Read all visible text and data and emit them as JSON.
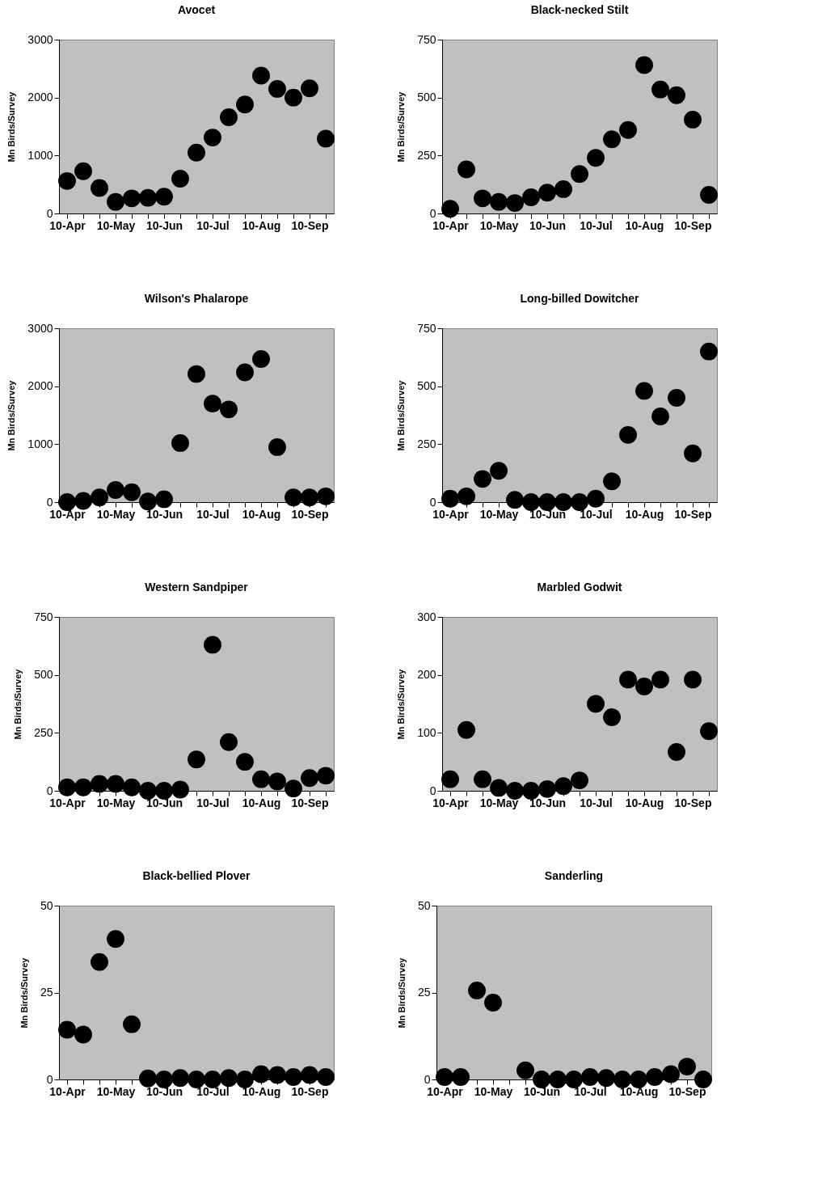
{
  "chart_data": [
    {
      "type": "scatter",
      "title": "Avocet",
      "ylabel": "Mn Birds/Survey",
      "categories": [
        "10-Apr",
        null,
        null,
        "10-May",
        null,
        null,
        "10-Jun",
        null,
        null,
        "10-Jul",
        null,
        null,
        "10-Aug",
        null,
        null,
        "10-Sep",
        null
      ],
      "values": [
        560,
        730,
        440,
        200,
        260,
        270,
        290,
        600,
        1050,
        1310,
        1660,
        1880,
        2380,
        2150,
        2000,
        2160,
        1290
      ],
      "color": "#000000",
      "ylim": [
        0,
        3000
      ],
      "yticks": [
        0,
        1000,
        2000,
        3000
      ],
      "marker": "circle",
      "grid": false
    },
    {
      "type": "scatter",
      "title": "Black-necked Stilt",
      "ylabel": "Mn Birds/Survey",
      "categories": [
        "10-Apr",
        null,
        null,
        "10-May",
        null,
        null,
        "10-Jun",
        null,
        null,
        "10-Jul",
        null,
        null,
        "10-Aug",
        null,
        null,
        "10-Sep",
        null
      ],
      "values": [
        20,
        190,
        65,
        50,
        45,
        70,
        90,
        105,
        170,
        240,
        320,
        360,
        640,
        535,
        510,
        405,
        80
      ],
      "color": "#000000",
      "ylim": [
        0,
        750
      ],
      "yticks": [
        0,
        250,
        500,
        750
      ],
      "marker": "circle",
      "grid": false
    },
    {
      "type": "scatter",
      "title": "Wilson's Phalarope",
      "ylabel": "Mn Birds/Survey",
      "categories": [
        "10-Apr",
        null,
        null,
        "10-May",
        null,
        null,
        "10-Jun",
        null,
        null,
        "10-Jul",
        null,
        null,
        "10-Aug",
        null,
        null,
        "10-Sep",
        null
      ],
      "values": [
        0,
        20,
        80,
        210,
        170,
        10,
        50,
        1020,
        2210,
        1700,
        1600,
        2240,
        2470,
        950,
        80,
        80,
        100
      ],
      "color": "#000000",
      "ylim": [
        0,
        3000
      ],
      "yticks": [
        0,
        1000,
        2000,
        3000
      ],
      "marker": "circle",
      "grid": false
    },
    {
      "type": "scatter",
      "title": "Long-billed Dowitcher",
      "ylabel": "Mn Birds/Survey",
      "categories": [
        "10-Apr",
        null,
        null,
        "10-May",
        null,
        null,
        "10-Jun",
        null,
        null,
        "10-Jul",
        null,
        null,
        "10-Aug",
        null,
        null,
        "10-Sep",
        null
      ],
      "values": [
        15,
        25,
        100,
        135,
        10,
        0,
        0,
        0,
        0,
        15,
        90,
        290,
        480,
        370,
        450,
        210,
        650
      ],
      "color": "#000000",
      "ylim": [
        0,
        750
      ],
      "yticks": [
        0,
        250,
        500,
        750
      ],
      "marker": "circle",
      "grid": false
    },
    {
      "type": "scatter",
      "title": "Western Sandpiper",
      "ylabel": "Mn Birds/Survey",
      "categories": [
        "10-Apr",
        null,
        null,
        "10-May",
        null,
        null,
        "10-Jun",
        null,
        null,
        "10-Jul",
        null,
        null,
        "10-Aug",
        null,
        null,
        "10-Sep",
        null
      ],
      "values": [
        15,
        15,
        30,
        30,
        15,
        0,
        0,
        5,
        135,
        630,
        210,
        125,
        50,
        40,
        10,
        55,
        65
      ],
      "color": "#000000",
      "ylim": [
        0,
        750
      ],
      "yticks": [
        0,
        250,
        500,
        750
      ],
      "marker": "circle",
      "grid": false
    },
    {
      "type": "scatter",
      "title": "Marbled Godwit",
      "ylabel": "Mn Birds/Survey",
      "categories": [
        "10-Apr",
        null,
        null,
        "10-May",
        null,
        null,
        "10-Jun",
        null,
        null,
        "10-Jul",
        null,
        null,
        "10-Aug",
        null,
        null,
        "10-Sep",
        null
      ],
      "values": [
        20,
        105,
        20,
        5,
        0,
        0,
        3,
        8,
        18,
        150,
        127,
        192,
        180,
        192,
        67,
        192,
        103
      ],
      "color": "#000000",
      "ylim": [
        0,
        300
      ],
      "yticks": [
        0,
        100,
        200,
        300
      ],
      "marker": "circle",
      "grid": false
    },
    {
      "type": "scatter",
      "title": "Black-bellied Plover",
      "ylabel": "Mn Birds/Survey",
      "categories": [
        "10-Apr",
        null,
        null,
        "10-May",
        null,
        null,
        "10-Jun",
        null,
        null,
        "10-Jul",
        null,
        null,
        "10-Aug",
        null,
        null,
        "10-Sep",
        null
      ],
      "values": [
        14.3,
        12.9,
        33.8,
        40.4,
        15.9,
        0.3,
        0,
        0.4,
        0,
        0,
        0.4,
        0,
        1.5,
        1.3,
        0.7,
        1.3,
        0.7
      ],
      "color": "#000000",
      "ylim": [
        0,
        50
      ],
      "yticks": [
        0,
        25,
        50
      ],
      "marker": "circle",
      "grid": false
    },
    {
      "type": "scatter",
      "title": "Sanderling",
      "ylabel": "Mn Birds/Survey",
      "categories": [
        "10-Apr",
        null,
        null,
        "10-May",
        null,
        null,
        "10-Jun",
        null,
        null,
        "10-Jul",
        null,
        null,
        "10-Aug",
        null,
        null,
        "10-Sep",
        null
      ],
      "values": [
        0.7,
        0.7,
        25.6,
        22.1,
        null,
        2.6,
        0,
        0,
        0,
        0.7,
        0.4,
        0,
        0,
        0.7,
        1.5,
        3.7,
        0
      ],
      "color": "#000000",
      "ylim": [
        0,
        50
      ],
      "yticks": [
        0,
        25,
        50
      ],
      "marker": "circle",
      "grid": false
    }
  ]
}
